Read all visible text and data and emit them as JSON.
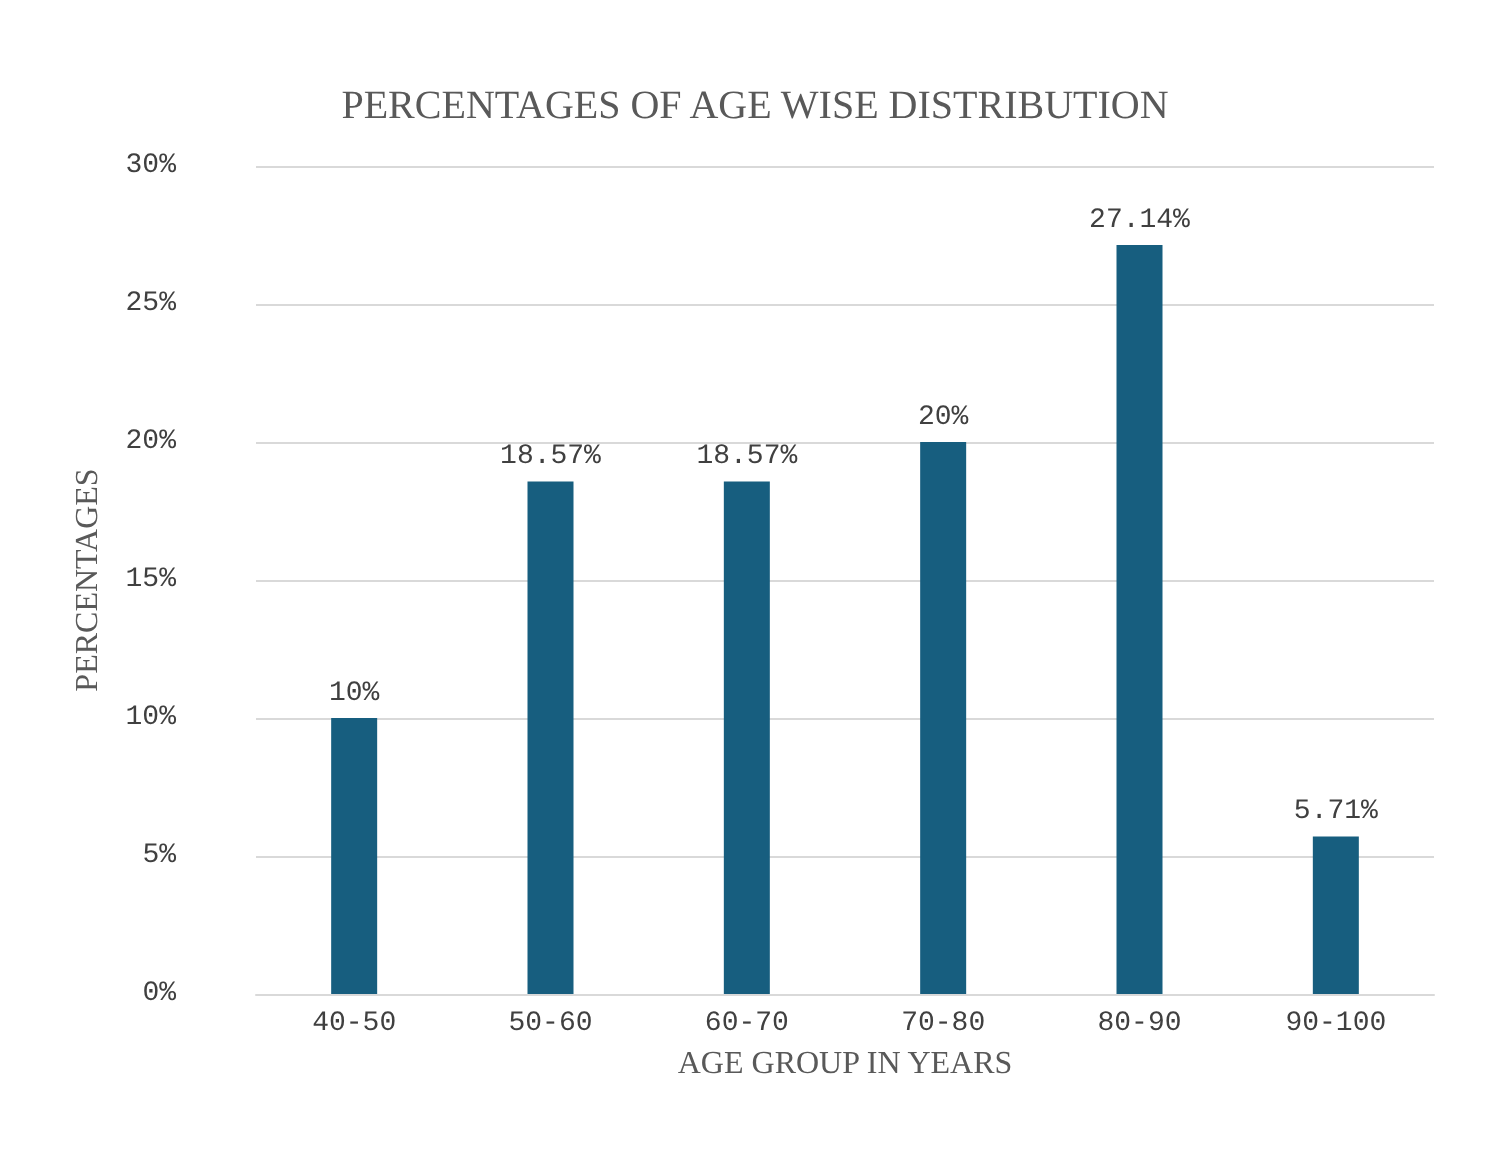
{
  "chart_data": {
    "type": "bar",
    "title": "PERCENTAGES OF AGE WISE DISTRIBUTION",
    "xlabel": "AGE GROUP IN YEARS",
    "ylabel": "PERCENTAGES",
    "categories": [
      "40-50",
      "50-60",
      "60-70",
      "70-80",
      "80-90",
      "90-100"
    ],
    "values": [
      10,
      18.57,
      18.57,
      20,
      27.14,
      5.71
    ],
    "value_labels": [
      "10%",
      "18.57%",
      "18.57%",
      "20%",
      "27.14%",
      "5.71%"
    ],
    "color": "#175e7f",
    "ylim": [
      0,
      30
    ],
    "yticks": [
      {
        "value": 0,
        "label": "0%"
      },
      {
        "value": 5,
        "label": "5%"
      },
      {
        "value": 10,
        "label": "10%"
      },
      {
        "value": 15,
        "label": "15%"
      },
      {
        "value": 20,
        "label": "20%"
      },
      {
        "value": 25,
        "label": "25%"
      },
      {
        "value": 30,
        "label": "30%"
      }
    ],
    "grid": "y"
  }
}
